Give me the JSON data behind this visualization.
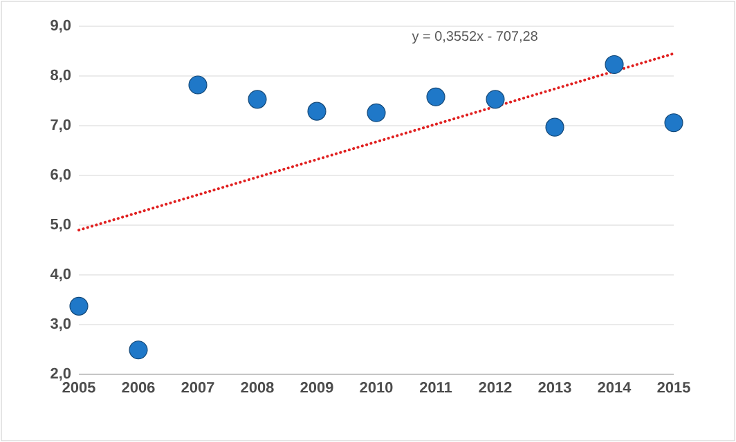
{
  "chart_data": {
    "type": "scatter",
    "x": [
      2005,
      2006,
      2007,
      2008,
      2009,
      2010,
      2011,
      2012,
      2013,
      2014,
      2015
    ],
    "series": [
      {
        "color": "#1f78c8",
        "values": [
          3.37,
          2.49,
          7.82,
          7.53,
          7.29,
          7.26,
          7.58,
          7.53,
          6.97,
          8.23,
          7.06
        ],
        "marker": "circle"
      },
      {
        "type": "line",
        "color": "#e02020",
        "x": [
          2005,
          2015
        ],
        "values": [
          4.9,
          8.45
        ],
        "line_style": "dotted",
        "marker": "none"
      }
    ],
    "annotations": [
      "y = 0,3552x - 707,28"
    ],
    "xlim": [
      2005,
      2015
    ],
    "xticks": [
      2005,
      2006,
      2007,
      2008,
      2009,
      2010,
      2011,
      2012,
      2013,
      2014,
      2015
    ],
    "ylim": [
      2,
      9
    ],
    "yticks": [
      {
        "value": 2,
        "label": "2,0"
      },
      {
        "value": 3,
        "label": "3,0"
      },
      {
        "value": 4,
        "label": "4,0"
      },
      {
        "value": 5,
        "label": "5,0"
      },
      {
        "value": 6,
        "label": "6,0"
      },
      {
        "value": 7,
        "label": "7,0"
      },
      {
        "value": 8,
        "label": "8,0"
      },
      {
        "value": 9,
        "label": "9,0"
      }
    ],
    "grid": "y"
  }
}
